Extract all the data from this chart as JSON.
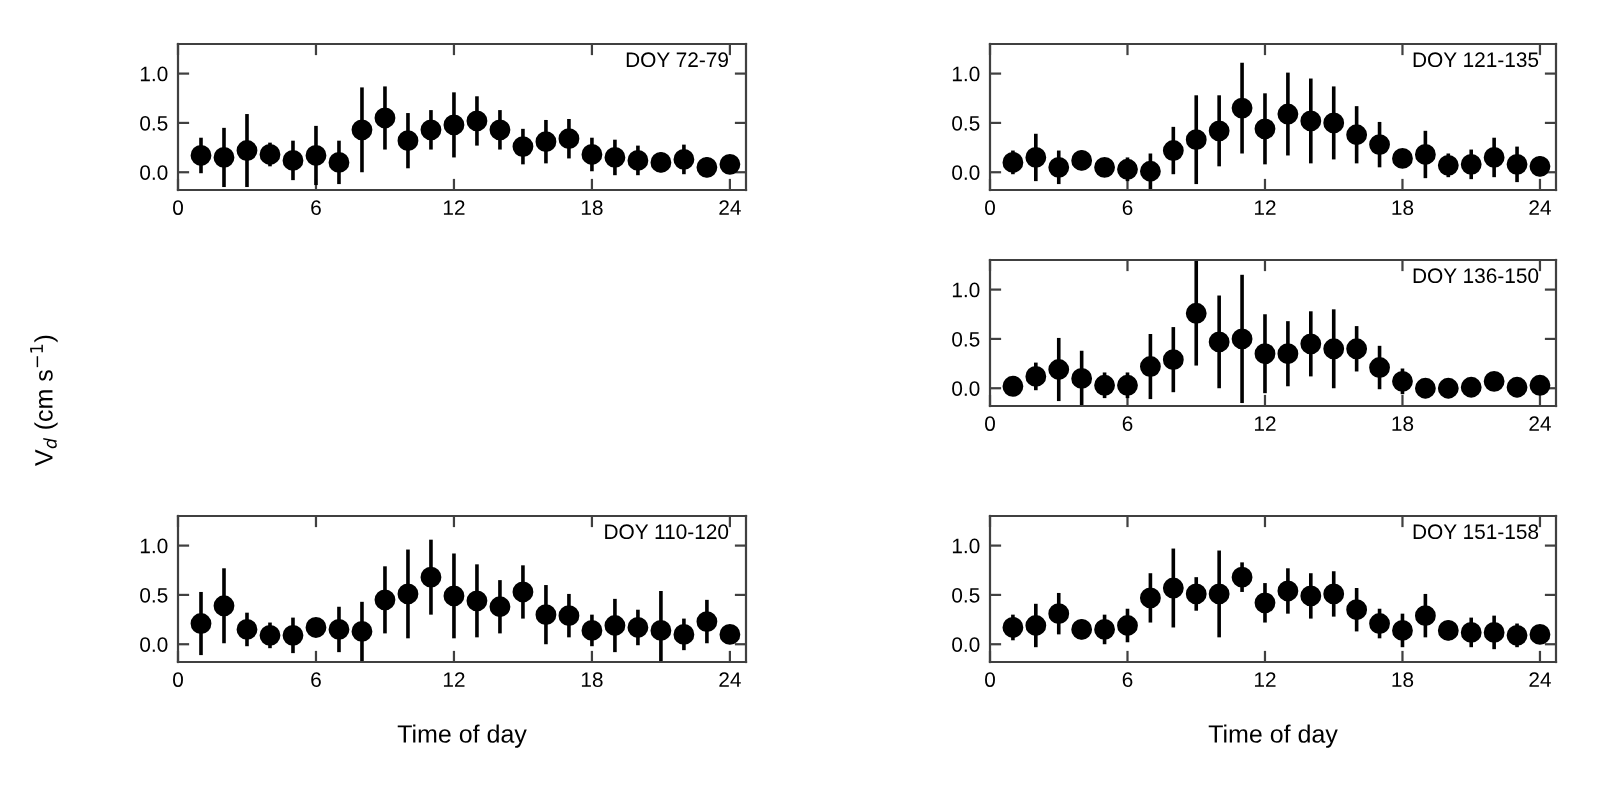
{
  "chart_data": [
    {
      "type": "scatter",
      "annotations": [
        "DOY 72-79"
      ],
      "ylabel": "V$_{d}$ (cm s$^{−1}$)",
      "x": [
        1,
        2,
        3,
        4,
        5,
        6,
        7,
        8,
        9,
        10,
        11,
        12,
        13,
        14,
        15,
        16,
        17,
        18,
        19,
        20,
        21,
        22,
        23,
        24
      ],
      "xlim": [
        0,
        24.7
      ],
      "xticks": [
        0,
        6,
        12,
        18,
        24
      ],
      "ylim": [
        -0.18,
        1.3
      ],
      "yticks": [
        {
          "value": 0,
          "label": "0.0"
        },
        {
          "value": 0.5,
          "label": "0.5"
        },
        {
          "value": 1,
          "label": "1.0"
        }
      ],
      "marker": "circle",
      "color": "#000000",
      "values": [
        0.17,
        0.15,
        0.22,
        0.18,
        0.12,
        0.17,
        0.1,
        0.43,
        0.55,
        0.32,
        0.43,
        0.48,
        0.52,
        0.43,
        0.26,
        0.31,
        0.34,
        0.18,
        0.15,
        0.12,
        0.1,
        0.13,
        0.05,
        0.08
      ],
      "errors": [
        0.18,
        0.3,
        0.37,
        0.12,
        0.2,
        0.3,
        0.22,
        0.43,
        0.32,
        0.28,
        0.2,
        0.33,
        0.25,
        0.2,
        0.18,
        0.22,
        0.2,
        0.17,
        0.18,
        0.15,
        0.1,
        0.15,
        0.1,
        0.07
      ]
    },
    {
      "type": "scatter",
      "annotations": [
        "DOY 121-135"
      ],
      "x": [
        1,
        2,
        3,
        4,
        5,
        6,
        7,
        8,
        9,
        10,
        11,
        12,
        13,
        14,
        15,
        16,
        17,
        18,
        19,
        20,
        21,
        22,
        23,
        24
      ],
      "xlim": [
        0,
        24.7
      ],
      "xticks": [
        0,
        6,
        12,
        18,
        24
      ],
      "ylim": [
        -0.18,
        1.3
      ],
      "yticks": [
        {
          "value": 0,
          "label": "0.0"
        },
        {
          "value": 0.5,
          "label": "0.5"
        },
        {
          "value": 1,
          "label": "1.0"
        }
      ],
      "marker": "circle",
      "color": "#000000",
      "values": [
        0.1,
        0.15,
        0.05,
        0.12,
        0.05,
        0.03,
        0.01,
        0.22,
        0.33,
        0.42,
        0.65,
        0.44,
        0.59,
        0.52,
        0.5,
        0.38,
        0.28,
        0.14,
        0.18,
        0.07,
        0.08,
        0.15,
        0.08,
        0.06
      ],
      "errors": [
        0.12,
        0.24,
        0.17,
        0.1,
        0.05,
        0.12,
        0.18,
        0.24,
        0.45,
        0.36,
        0.46,
        0.36,
        0.42,
        0.43,
        0.37,
        0.29,
        0.23,
        0.08,
        0.24,
        0.12,
        0.15,
        0.2,
        0.18,
        0.1
      ]
    },
    {
      "type": "scatter",
      "annotations": [
        "DOY 136-150"
      ],
      "x": [
        1,
        2,
        3,
        4,
        5,
        6,
        7,
        8,
        9,
        10,
        11,
        12,
        13,
        14,
        15,
        16,
        17,
        18,
        19,
        20,
        21,
        22,
        23,
        24
      ],
      "xlim": [
        0,
        24.7
      ],
      "xticks": [
        0,
        6,
        12,
        18,
        24
      ],
      "ylim": [
        -0.18,
        1.3
      ],
      "yticks": [
        {
          "value": 0,
          "label": "0.0"
        },
        {
          "value": 0.5,
          "label": "0.5"
        },
        {
          "value": 1,
          "label": "1.0"
        }
      ],
      "marker": "circle",
      "color": "#000000",
      "values": [
        0.02,
        0.12,
        0.19,
        0.1,
        0.03,
        0.03,
        0.22,
        0.29,
        0.76,
        0.47,
        0.5,
        0.35,
        0.35,
        0.45,
        0.4,
        0.4,
        0.21,
        0.07,
        0.0,
        0.0,
        0.01,
        0.07,
        0.01,
        0.03
      ],
      "errors": [
        0.08,
        0.14,
        0.32,
        0.28,
        0.13,
        0.13,
        0.33,
        0.33,
        0.53,
        0.47,
        0.65,
        0.4,
        0.33,
        0.33,
        0.4,
        0.23,
        0.22,
        0.13,
        0.1,
        0.1,
        0.06,
        0.07,
        0.1,
        0.08
      ]
    },
    {
      "type": "scatter",
      "annotations": [
        "DOY 110-120"
      ],
      "xlabel": "Time of day",
      "x": [
        1,
        2,
        3,
        4,
        5,
        6,
        7,
        8,
        9,
        10,
        11,
        12,
        13,
        14,
        15,
        16,
        17,
        18,
        19,
        20,
        21,
        22,
        23,
        24
      ],
      "xlim": [
        0,
        24.7
      ],
      "xticks": [
        0,
        6,
        12,
        18,
        24
      ],
      "ylim": [
        -0.18,
        1.3
      ],
      "yticks": [
        {
          "value": 0,
          "label": "0.0"
        },
        {
          "value": 0.5,
          "label": "0.5"
        },
        {
          "value": 1,
          "label": "1.0"
        }
      ],
      "marker": "circle",
      "color": "#000000",
      "values": [
        0.21,
        0.39,
        0.15,
        0.09,
        0.09,
        0.17,
        0.15,
        0.13,
        0.45,
        0.51,
        0.68,
        0.49,
        0.44,
        0.38,
        0.53,
        0.3,
        0.29,
        0.14,
        0.19,
        0.17,
        0.14,
        0.1,
        0.23,
        0.1
      ],
      "errors": [
        0.32,
        0.38,
        0.17,
        0.13,
        0.18,
        0.08,
        0.23,
        0.3,
        0.34,
        0.45,
        0.38,
        0.43,
        0.37,
        0.27,
        0.27,
        0.3,
        0.22,
        0.16,
        0.27,
        0.18,
        0.4,
        0.16,
        0.22,
        0.08
      ]
    },
    {
      "type": "scatter",
      "annotations": [
        "DOY 151-158"
      ],
      "xlabel": "Time of day",
      "x": [
        1,
        2,
        3,
        4,
        5,
        6,
        7,
        8,
        9,
        10,
        11,
        12,
        13,
        14,
        15,
        16,
        17,
        18,
        19,
        20,
        21,
        22,
        23,
        24
      ],
      "xlim": [
        0,
        24.7
      ],
      "xticks": [
        0,
        6,
        12,
        18,
        24
      ],
      "ylim": [
        -0.18,
        1.3
      ],
      "yticks": [
        {
          "value": 0,
          "label": "0.0"
        },
        {
          "value": 0.5,
          "label": "0.5"
        },
        {
          "value": 1,
          "label": "1.0"
        }
      ],
      "marker": "circle",
      "color": "#000000",
      "values": [
        0.17,
        0.19,
        0.31,
        0.15,
        0.15,
        0.19,
        0.47,
        0.57,
        0.51,
        0.51,
        0.68,
        0.42,
        0.54,
        0.49,
        0.51,
        0.35,
        0.21,
        0.14,
        0.29,
        0.14,
        0.12,
        0.12,
        0.09,
        0.1
      ],
      "errors": [
        0.13,
        0.22,
        0.21,
        0.1,
        0.15,
        0.17,
        0.25,
        0.4,
        0.17,
        0.44,
        0.15,
        0.2,
        0.23,
        0.23,
        0.23,
        0.22,
        0.15,
        0.17,
        0.22,
        0.1,
        0.15,
        0.17,
        0.12,
        0.08
      ]
    }
  ]
}
